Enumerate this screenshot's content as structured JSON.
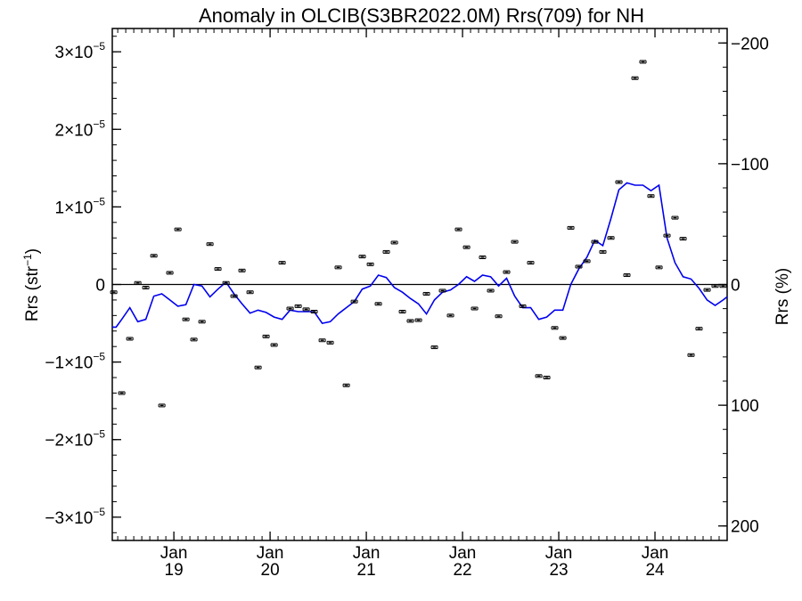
{
  "chart_data": {
    "type": "scatter",
    "title": "Anomaly in OLCIB(S3BR2022.0M) Rrs(709) for NH",
    "ylabel_left": {
      "base": "Rrs (str",
      "sup": "−1",
      "end": ")"
    },
    "ylabel_right": "Rrs (%)",
    "x_ticks": [
      {
        "year": 2019,
        "month": "Jan",
        "year_label": "19"
      },
      {
        "year": 2020,
        "month": "Jan",
        "year_label": "20"
      },
      {
        "year": 2021,
        "month": "Jan",
        "year_label": "21"
      },
      {
        "year": 2022,
        "month": "Jan",
        "year_label": "22"
      },
      {
        "year": 2023,
        "month": "Jan",
        "year_label": "23"
      },
      {
        "year": 2024,
        "month": "Jan",
        "year_label": "24"
      }
    ],
    "xlim": [
      2018.36,
      2024.75
    ],
    "ylim_left": [
      -3.3e-05,
      3.3e-05
    ],
    "ylim_right": [
      212,
      -212
    ],
    "y_ticks_left": [
      {
        "value": 3e-05,
        "mant": "3×10",
        "exp": "−5"
      },
      {
        "value": 2e-05,
        "mant": "2×10",
        "exp": "−5"
      },
      {
        "value": 1e-05,
        "mant": "1×10",
        "exp": "−5"
      },
      {
        "value": 0,
        "mant": "0",
        "exp": ""
      },
      {
        "value": -1e-05,
        "mant": "−1×10",
        "exp": "−5"
      },
      {
        "value": -2e-05,
        "mant": "−2×10",
        "exp": "−5"
      },
      {
        "value": -3e-05,
        "mant": "−3×10",
        "exp": "−5"
      }
    ],
    "y_ticks_right": [
      {
        "value": -200,
        "label": "−200"
      },
      {
        "value": -100,
        "label": "−100"
      },
      {
        "value": 0,
        "label": "0"
      },
      {
        "value": 100,
        "label": "100"
      },
      {
        "value": 200,
        "label": "200"
      }
    ],
    "zero_line": true,
    "series": [
      {
        "kind": "monthly_anomaly_points",
        "color": "#000000",
        "x": [
          2018.375,
          2018.458,
          2018.542,
          2018.625,
          2018.708,
          2018.792,
          2018.875,
          2018.958,
          2019.042,
          2019.125,
          2019.208,
          2019.292,
          2019.375,
          2019.458,
          2019.542,
          2019.625,
          2019.708,
          2019.792,
          2019.875,
          2019.958,
          2020.042,
          2020.125,
          2020.208,
          2020.292,
          2020.375,
          2020.458,
          2020.542,
          2020.625,
          2020.708,
          2020.792,
          2020.875,
          2020.958,
          2021.042,
          2021.125,
          2021.208,
          2021.292,
          2021.375,
          2021.458,
          2021.542,
          2021.625,
          2021.708,
          2021.792,
          2021.875,
          2021.958,
          2022.042,
          2022.125,
          2022.208,
          2022.292,
          2022.375,
          2022.458,
          2022.542,
          2022.625,
          2022.708,
          2022.792,
          2022.875,
          2022.958,
          2023.042,
          2023.125,
          2023.208,
          2023.292,
          2023.375,
          2023.458,
          2023.542,
          2023.625,
          2023.708,
          2023.792,
          2023.875,
          2023.958,
          2024.042,
          2024.125,
          2024.208,
          2024.292,
          2024.375,
          2024.458,
          2024.542,
          2024.625,
          2024.708
        ],
        "y": [
          -1e-06,
          -1.4e-05,
          -7e-06,
          2e-07,
          -4e-07,
          3.7e-06,
          -1.56e-05,
          1.5e-06,
          7.1e-06,
          -4.5e-06,
          -7.1e-06,
          -4.8e-06,
          5.2e-06,
          2e-06,
          2e-07,
          -1.5e-06,
          1.8e-06,
          -1e-06,
          -1.07e-05,
          -6.7e-06,
          -7.8e-06,
          2.8e-06,
          -3.1e-06,
          -2.8e-06,
          -3.2e-06,
          -3.5e-06,
          -7.2e-06,
          -7.5e-06,
          2.2e-06,
          -1.3e-05,
          -2.2e-06,
          3.6e-06,
          2.6e-06,
          -2.5e-06,
          4.2e-06,
          5.4e-06,
          -3.5e-06,
          -4.7e-06,
          -4.6e-06,
          -1.2e-06,
          -8.1e-06,
          -8e-07,
          -4e-06,
          7.1e-06,
          4.8e-06,
          -3.1e-06,
          3.5e-06,
          -8e-07,
          -4.1e-06,
          1.6e-06,
          5.5e-06,
          -2.8e-06,
          2.8e-06,
          -1.18e-05,
          -1.2e-05,
          -5.6e-06,
          -6.9e-06,
          7.3e-06,
          2.3e-06,
          3e-06,
          5.5e-06,
          4.2e-06,
          6e-06,
          1.32e-05,
          1.2e-06,
          2.66e-05,
          2.87e-05,
          1.14e-05,
          2.2e-06,
          6.3e-06,
          8.6e-06,
          5.9e-06,
          -9.1e-06,
          -5.7e-06,
          -7e-07,
          -2e-07,
          -2e-07
        ]
      },
      {
        "kind": "running_mean_line",
        "color": "#0000ee",
        "x": [
          2018.36,
          2018.4,
          2018.458,
          2018.542,
          2018.625,
          2018.708,
          2018.792,
          2018.875,
          2018.958,
          2019.042,
          2019.125,
          2019.208,
          2019.292,
          2019.375,
          2019.458,
          2019.542,
          2019.625,
          2019.708,
          2019.792,
          2019.875,
          2019.958,
          2020.042,
          2020.125,
          2020.208,
          2020.292,
          2020.375,
          2020.458,
          2020.542,
          2020.625,
          2020.708,
          2020.792,
          2020.875,
          2020.958,
          2021.042,
          2021.125,
          2021.208,
          2021.292,
          2021.375,
          2021.458,
          2021.542,
          2021.625,
          2021.708,
          2021.792,
          2021.875,
          2021.958,
          2022.042,
          2022.125,
          2022.208,
          2022.292,
          2022.375,
          2022.458,
          2022.542,
          2022.625,
          2022.708,
          2022.792,
          2022.875,
          2022.958,
          2023.042,
          2023.125,
          2023.208,
          2023.292,
          2023.375,
          2023.458,
          2023.542,
          2023.625,
          2023.708,
          2023.792,
          2023.875,
          2023.958,
          2024.042,
          2024.125,
          2024.208,
          2024.292,
          2024.375,
          2024.458,
          2024.542,
          2024.625,
          2024.708,
          2024.75
        ],
        "y": [
          -5.5e-06,
          -5.5e-06,
          -4.5e-06,
          -3e-06,
          -4.8e-06,
          -4.5e-06,
          -1.5e-06,
          -1.2e-06,
          -2e-06,
          -2.8e-06,
          -2.6e-06,
          0.0,
          -2e-07,
          -1.6e-06,
          -6e-07,
          3e-07,
          -1.2e-06,
          -2.5e-06,
          -3.7e-06,
          -3.3e-06,
          -3.6e-06,
          -4.2e-06,
          -4.5e-06,
          -3.3e-06,
          -3.5e-06,
          -3.5e-06,
          -3.5e-06,
          -5e-06,
          -4.8e-06,
          -3.8e-06,
          -3e-06,
          -2.2e-06,
          -6e-07,
          -2e-07,
          1.2e-06,
          9e-07,
          -4e-07,
          -1e-06,
          -1.8e-06,
          -2.5e-06,
          -3.8e-06,
          -2e-06,
          -1e-06,
          -7e-07,
          0.0,
          1e-06,
          4e-07,
          1.2e-06,
          1e-06,
          -2e-07,
          8e-07,
          -1.5e-06,
          -3e-06,
          -3e-06,
          -4.5e-06,
          -4.2e-06,
          -3.3e-06,
          -3.3e-06,
          0.0,
          2e-06,
          3.5e-06,
          5.7e-06,
          5e-06,
          8.5e-06,
          1.22e-05,
          1.31e-05,
          1.28e-05,
          1.28e-05,
          1.21e-05,
          1.28e-05,
          6e-06,
          2.8e-06,
          1e-06,
          7e-07,
          -5e-07,
          -2e-06,
          -2.7e-06,
          -2e-06,
          -1.6e-06
        ]
      }
    ]
  }
}
